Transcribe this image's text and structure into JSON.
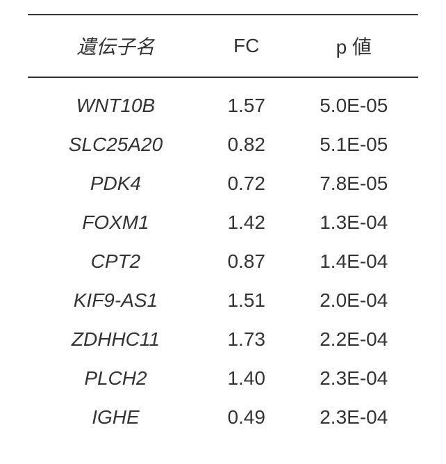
{
  "table": {
    "headers": {
      "gene": "遺伝子名",
      "fc": "FC",
      "p": "p 値"
    },
    "rows": [
      {
        "gene": "WNT10B",
        "fc": "1.57",
        "p": "5.0E-05"
      },
      {
        "gene": "SLC25A20",
        "fc": "0.82",
        "p": "5.1E-05"
      },
      {
        "gene": "PDK4",
        "fc": "0.72",
        "p": "7.8E-05"
      },
      {
        "gene": "FOXM1",
        "fc": "1.42",
        "p": "1.3E-04"
      },
      {
        "gene": "CPT2",
        "fc": "0.87",
        "p": "1.4E-04"
      },
      {
        "gene": "KIF9-AS1",
        "fc": "1.51",
        "p": "2.0E-04"
      },
      {
        "gene": "ZDHHC11",
        "fc": "1.73",
        "p": "2.2E-04"
      },
      {
        "gene": "PLCH2",
        "fc": "1.40",
        "p": "2.3E-04"
      },
      {
        "gene": "IGHE",
        "fc": "0.49",
        "p": "2.3E-04"
      }
    ],
    "styling": {
      "rule_color": "#333333",
      "text_color": "#333333",
      "background": "#ffffff",
      "header_fontsize": 28,
      "body_fontsize": 28,
      "gene_font_style": "italic"
    }
  }
}
